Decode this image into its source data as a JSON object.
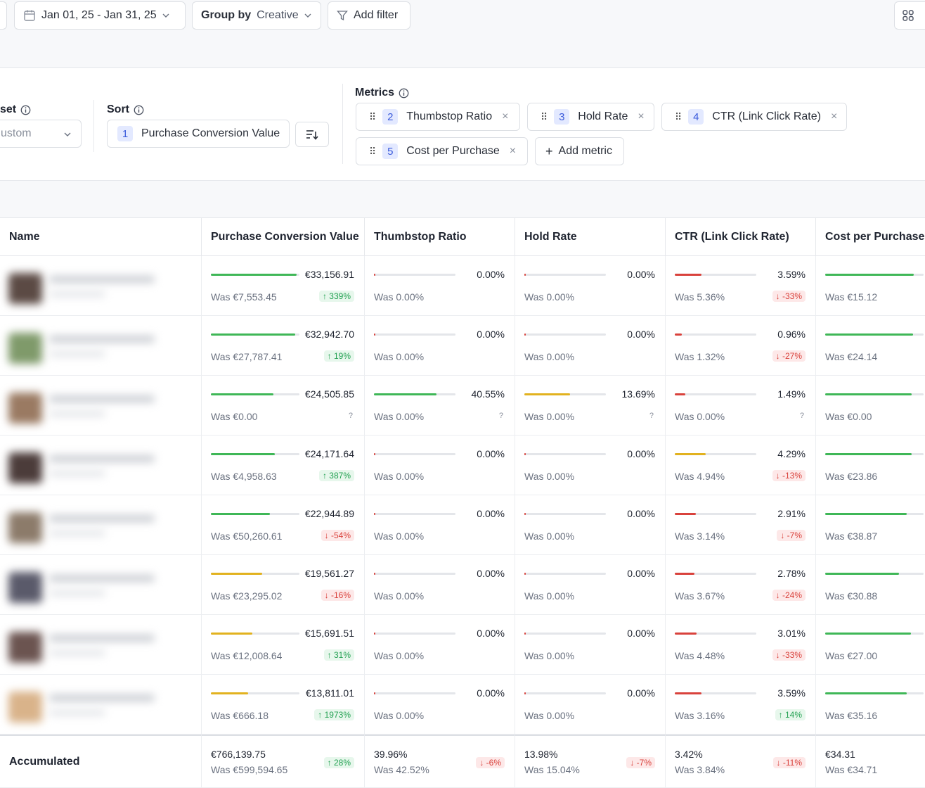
{
  "toolbar": {
    "date_range": "Jan 01, 25 - Jan 31, 25",
    "group_by_label": "Group by",
    "group_by_value": "Creative",
    "add_filter": "Add filter"
  },
  "controls": {
    "preset_label": "set",
    "preset_value": "ustom",
    "sort_label": "Sort",
    "sort_badge": "1",
    "sort_value": "Purchase Conversion Value",
    "metrics_label": "Metrics",
    "metrics": [
      {
        "num": "2",
        "label": "Thumbstop Ratio"
      },
      {
        "num": "3",
        "label": "Hold Rate"
      },
      {
        "num": "4",
        "label": "CTR (Link Click Rate)"
      },
      {
        "num": "5",
        "label": "Cost per Purchase"
      }
    ],
    "add_metric": "Add metric"
  },
  "table": {
    "headers": [
      "Name",
      "Purchase Conversion Value",
      "Thumbstop Ratio",
      "Hold Rate",
      "CTR (Link Click Rate)",
      "Cost per Purchase"
    ],
    "rows": [
      {
        "pcv": {
          "v": "€33,156.91",
          "was": "Was €7,553.45",
          "d": "↑ 339%",
          "dir": "up",
          "fill": 0.97,
          "color": "#3fb757"
        },
        "tr": {
          "v": "0.00%",
          "was": "Was 0.00%",
          "fill": 0.01
        },
        "hr": {
          "v": "0.00%",
          "was": "Was 0.00%",
          "fill": 0.01
        },
        "ctr": {
          "v": "3.59%",
          "was": "Was 5.36%",
          "d": "↓ -33%",
          "dir": "down",
          "fill": 0.33,
          "color": "#d9423c"
        },
        "cpp": {
          "v": "",
          "was": "Was €15.12",
          "fill": 0.9,
          "color": "#3fb757"
        }
      },
      {
        "pcv": {
          "v": "€32,942.70",
          "was": "Was €27,787.41",
          "d": "↑ 19%",
          "dir": "up",
          "fill": 0.95,
          "color": "#3fb757"
        },
        "tr": {
          "v": "0.00%",
          "was": "Was 0.00%",
          "fill": 0.01
        },
        "hr": {
          "v": "0.00%",
          "was": "Was 0.00%",
          "fill": 0.01
        },
        "ctr": {
          "v": "0.96%",
          "was": "Was 1.32%",
          "d": "↓ -27%",
          "dir": "down",
          "fill": 0.09,
          "color": "#d9423c"
        },
        "cpp": {
          "v": "",
          "was": "Was €24.14",
          "fill": 0.89,
          "color": "#3fb757"
        }
      },
      {
        "pcv": {
          "v": "€24,505.85",
          "was": "Was €0.00",
          "q": "?",
          "fill": 0.71,
          "color": "#3fb757"
        },
        "tr": {
          "v": "40.55%",
          "was": "Was 0.00%",
          "q": "?",
          "fill": 0.77,
          "color": "#3fb757"
        },
        "hr": {
          "v": "13.69%",
          "was": "Was 0.00%",
          "q": "?",
          "fill": 0.56,
          "color": "#e2b21f"
        },
        "ctr": {
          "v": "1.49%",
          "was": "Was 0.00%",
          "q": "?",
          "fill": 0.13,
          "color": "#d9423c"
        },
        "cpp": {
          "v": "",
          "was": "Was €0.00",
          "fill": 0.88,
          "color": "#3fb757"
        }
      },
      {
        "pcv": {
          "v": "€24,171.64",
          "was": "Was €4,958.63",
          "d": "↑ 387%",
          "dir": "up",
          "fill": 0.72,
          "color": "#3fb757"
        },
        "tr": {
          "v": "0.00%",
          "was": "Was 0.00%",
          "fill": 0.01
        },
        "hr": {
          "v": "0.00%",
          "was": "Was 0.00%",
          "fill": 0.01
        },
        "ctr": {
          "v": "4.29%",
          "was": "Was 4.94%",
          "d": "↓ -13%",
          "dir": "down",
          "fill": 0.38,
          "color": "#e2b21f"
        },
        "cpp": {
          "v": "",
          "was": "Was €23.86",
          "fill": 0.88,
          "color": "#3fb757"
        }
      },
      {
        "pcv": {
          "v": "€22,944.89",
          "was": "Was €50,260.61",
          "d": "↓ -54%",
          "dir": "down",
          "fill": 0.67,
          "color": "#3fb757"
        },
        "tr": {
          "v": "0.00%",
          "was": "Was 0.00%",
          "fill": 0.01
        },
        "hr": {
          "v": "0.00%",
          "was": "Was 0.00%",
          "fill": 0.01
        },
        "ctr": {
          "v": "2.91%",
          "was": "Was 3.14%",
          "d": "↓ -7%",
          "dir": "down",
          "fill": 0.26,
          "color": "#d9423c"
        },
        "cpp": {
          "v": "",
          "was": "Was €38.87",
          "fill": 0.83,
          "color": "#3fb757"
        }
      },
      {
        "pcv": {
          "v": "€19,561.27",
          "was": "Was €23,295.02",
          "d": "↓ -16%",
          "dir": "down",
          "fill": 0.58,
          "color": "#e2b21f"
        },
        "tr": {
          "v": "0.00%",
          "was": "Was 0.00%",
          "fill": 0.01
        },
        "hr": {
          "v": "0.00%",
          "was": "Was 0.00%",
          "fill": 0.01
        },
        "ctr": {
          "v": "2.78%",
          "was": "Was 3.67%",
          "d": "↓ -24%",
          "dir": "down",
          "fill": 0.24,
          "color": "#d9423c"
        },
        "cpp": {
          "v": "",
          "was": "Was €30.88",
          "fill": 0.75,
          "color": "#3fb757"
        }
      },
      {
        "pcv": {
          "v": "€15,691.51",
          "was": "Was €12,008.64",
          "d": "↑ 31%",
          "dir": "up",
          "fill": 0.47,
          "color": "#e2b21f"
        },
        "tr": {
          "v": "0.00%",
          "was": "Was 0.00%",
          "fill": 0.01
        },
        "hr": {
          "v": "0.00%",
          "was": "Was 0.00%",
          "fill": 0.01
        },
        "ctr": {
          "v": "3.01%",
          "was": "Was 4.48%",
          "d": "↓ -33%",
          "dir": "down",
          "fill": 0.27,
          "color": "#d9423c"
        },
        "cpp": {
          "v": "",
          "was": "Was €27.00",
          "fill": 0.87,
          "color": "#3fb757"
        }
      },
      {
        "pcv": {
          "v": "€13,811.01",
          "was": "Was €666.18",
          "d": "↑ 1973%",
          "dir": "up",
          "fill": 0.42,
          "color": "#e2b21f"
        },
        "tr": {
          "v": "0.00%",
          "was": "Was 0.00%",
          "fill": 0.01
        },
        "hr": {
          "v": "0.00%",
          "was": "Was 0.00%",
          "fill": 0.01
        },
        "ctr": {
          "v": "3.59%",
          "was": "Was 3.16%",
          "d": "↑ 14%",
          "dir": "up",
          "fill": 0.33,
          "color": "#d9423c"
        },
        "cpp": {
          "v": "",
          "was": "Was €35.16",
          "fill": 0.83,
          "color": "#3fb757"
        }
      }
    ],
    "accumulated": {
      "label": "Accumulated",
      "pcv": {
        "v": "€766,139.75",
        "was": "Was €599,594.65",
        "d": "↑ 28%",
        "dir": "up"
      },
      "tr": {
        "v": "39.96%",
        "was": "Was 42.52%",
        "d": "↓ -6%",
        "dir": "down"
      },
      "hr": {
        "v": "13.98%",
        "was": "Was 15.04%",
        "d": "↓ -7%",
        "dir": "down"
      },
      "ctr": {
        "v": "3.42%",
        "was": "Was 3.84%",
        "d": "↓ -11%",
        "dir": "down"
      },
      "cpp": {
        "v": "€34.31",
        "was": "Was €34.71"
      }
    }
  },
  "colors": {
    "green": "#3fb757",
    "yellow": "#e2b21f",
    "red": "#d9423c",
    "accent": "#3b5bdb"
  }
}
